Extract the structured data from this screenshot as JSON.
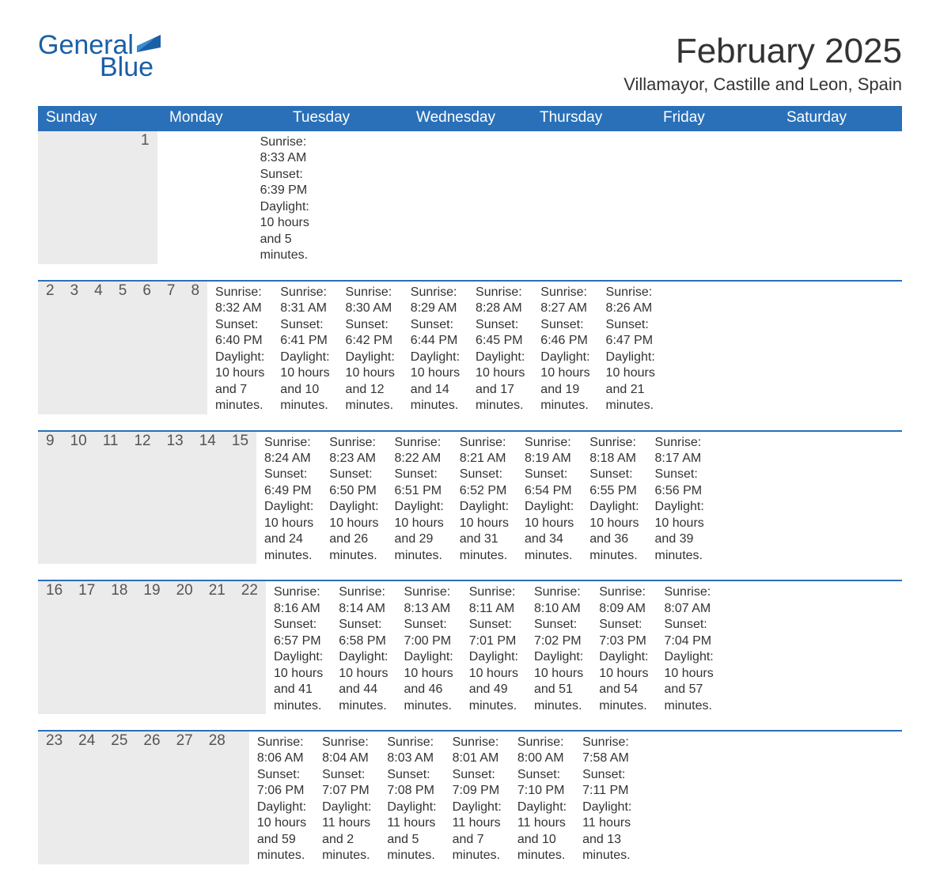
{
  "logo": {
    "word1": "General",
    "word2": "Blue"
  },
  "title": "February 2025",
  "location": "Villamayor, Castille and Leon, Spain",
  "colors": {
    "header_bg": "#2a70b8",
    "header_text": "#ffffff",
    "daynum_bg": "#ebebeb",
    "body_text": "#333333",
    "logo_color": "#1b5fa6",
    "rule_color": "#2a70b8"
  },
  "fonts": {
    "title_pt": 44,
    "location_pt": 22,
    "weekday_pt": 19,
    "daynum_pt": 19,
    "body_pt": 16
  },
  "weekdays": [
    "Sunday",
    "Monday",
    "Tuesday",
    "Wednesday",
    "Thursday",
    "Friday",
    "Saturday"
  ],
  "weeks": [
    [
      {
        "n": "",
        "sunrise": "",
        "sunset": "",
        "daylight": ""
      },
      {
        "n": "",
        "sunrise": "",
        "sunset": "",
        "daylight": ""
      },
      {
        "n": "",
        "sunrise": "",
        "sunset": "",
        "daylight": ""
      },
      {
        "n": "",
        "sunrise": "",
        "sunset": "",
        "daylight": ""
      },
      {
        "n": "",
        "sunrise": "",
        "sunset": "",
        "daylight": ""
      },
      {
        "n": "",
        "sunrise": "",
        "sunset": "",
        "daylight": ""
      },
      {
        "n": "1",
        "sunrise": "Sunrise: 8:33 AM",
        "sunset": "Sunset: 6:39 PM",
        "daylight": "Daylight: 10 hours and 5 minutes."
      }
    ],
    [
      {
        "n": "2",
        "sunrise": "Sunrise: 8:32 AM",
        "sunset": "Sunset: 6:40 PM",
        "daylight": "Daylight: 10 hours and 7 minutes."
      },
      {
        "n": "3",
        "sunrise": "Sunrise: 8:31 AM",
        "sunset": "Sunset: 6:41 PM",
        "daylight": "Daylight: 10 hours and 10 minutes."
      },
      {
        "n": "4",
        "sunrise": "Sunrise: 8:30 AM",
        "sunset": "Sunset: 6:42 PM",
        "daylight": "Daylight: 10 hours and 12 minutes."
      },
      {
        "n": "5",
        "sunrise": "Sunrise: 8:29 AM",
        "sunset": "Sunset: 6:44 PM",
        "daylight": "Daylight: 10 hours and 14 minutes."
      },
      {
        "n": "6",
        "sunrise": "Sunrise: 8:28 AM",
        "sunset": "Sunset: 6:45 PM",
        "daylight": "Daylight: 10 hours and 17 minutes."
      },
      {
        "n": "7",
        "sunrise": "Sunrise: 8:27 AM",
        "sunset": "Sunset: 6:46 PM",
        "daylight": "Daylight: 10 hours and 19 minutes."
      },
      {
        "n": "8",
        "sunrise": "Sunrise: 8:26 AM",
        "sunset": "Sunset: 6:47 PM",
        "daylight": "Daylight: 10 hours and 21 minutes."
      }
    ],
    [
      {
        "n": "9",
        "sunrise": "Sunrise: 8:24 AM",
        "sunset": "Sunset: 6:49 PM",
        "daylight": "Daylight: 10 hours and 24 minutes."
      },
      {
        "n": "10",
        "sunrise": "Sunrise: 8:23 AM",
        "sunset": "Sunset: 6:50 PM",
        "daylight": "Daylight: 10 hours and 26 minutes."
      },
      {
        "n": "11",
        "sunrise": "Sunrise: 8:22 AM",
        "sunset": "Sunset: 6:51 PM",
        "daylight": "Daylight: 10 hours and 29 minutes."
      },
      {
        "n": "12",
        "sunrise": "Sunrise: 8:21 AM",
        "sunset": "Sunset: 6:52 PM",
        "daylight": "Daylight: 10 hours and 31 minutes."
      },
      {
        "n": "13",
        "sunrise": "Sunrise: 8:19 AM",
        "sunset": "Sunset: 6:54 PM",
        "daylight": "Daylight: 10 hours and 34 minutes."
      },
      {
        "n": "14",
        "sunrise": "Sunrise: 8:18 AM",
        "sunset": "Sunset: 6:55 PM",
        "daylight": "Daylight: 10 hours and 36 minutes."
      },
      {
        "n": "15",
        "sunrise": "Sunrise: 8:17 AM",
        "sunset": "Sunset: 6:56 PM",
        "daylight": "Daylight: 10 hours and 39 minutes."
      }
    ],
    [
      {
        "n": "16",
        "sunrise": "Sunrise: 8:16 AM",
        "sunset": "Sunset: 6:57 PM",
        "daylight": "Daylight: 10 hours and 41 minutes."
      },
      {
        "n": "17",
        "sunrise": "Sunrise: 8:14 AM",
        "sunset": "Sunset: 6:58 PM",
        "daylight": "Daylight: 10 hours and 44 minutes."
      },
      {
        "n": "18",
        "sunrise": "Sunrise: 8:13 AM",
        "sunset": "Sunset: 7:00 PM",
        "daylight": "Daylight: 10 hours and 46 minutes."
      },
      {
        "n": "19",
        "sunrise": "Sunrise: 8:11 AM",
        "sunset": "Sunset: 7:01 PM",
        "daylight": "Daylight: 10 hours and 49 minutes."
      },
      {
        "n": "20",
        "sunrise": "Sunrise: 8:10 AM",
        "sunset": "Sunset: 7:02 PM",
        "daylight": "Daylight: 10 hours and 51 minutes."
      },
      {
        "n": "21",
        "sunrise": "Sunrise: 8:09 AM",
        "sunset": "Sunset: 7:03 PM",
        "daylight": "Daylight: 10 hours and 54 minutes."
      },
      {
        "n": "22",
        "sunrise": "Sunrise: 8:07 AM",
        "sunset": "Sunset: 7:04 PM",
        "daylight": "Daylight: 10 hours and 57 minutes."
      }
    ],
    [
      {
        "n": "23",
        "sunrise": "Sunrise: 8:06 AM",
        "sunset": "Sunset: 7:06 PM",
        "daylight": "Daylight: 10 hours and 59 minutes."
      },
      {
        "n": "24",
        "sunrise": "Sunrise: 8:04 AM",
        "sunset": "Sunset: 7:07 PM",
        "daylight": "Daylight: 11 hours and 2 minutes."
      },
      {
        "n": "25",
        "sunrise": "Sunrise: 8:03 AM",
        "sunset": "Sunset: 7:08 PM",
        "daylight": "Daylight: 11 hours and 5 minutes."
      },
      {
        "n": "26",
        "sunrise": "Sunrise: 8:01 AM",
        "sunset": "Sunset: 7:09 PM",
        "daylight": "Daylight: 11 hours and 7 minutes."
      },
      {
        "n": "27",
        "sunrise": "Sunrise: 8:00 AM",
        "sunset": "Sunset: 7:10 PM",
        "daylight": "Daylight: 11 hours and 10 minutes."
      },
      {
        "n": "28",
        "sunrise": "Sunrise: 7:58 AM",
        "sunset": "Sunset: 7:11 PM",
        "daylight": "Daylight: 11 hours and 13 minutes."
      },
      {
        "n": "",
        "sunrise": "",
        "sunset": "",
        "daylight": ""
      }
    ]
  ]
}
